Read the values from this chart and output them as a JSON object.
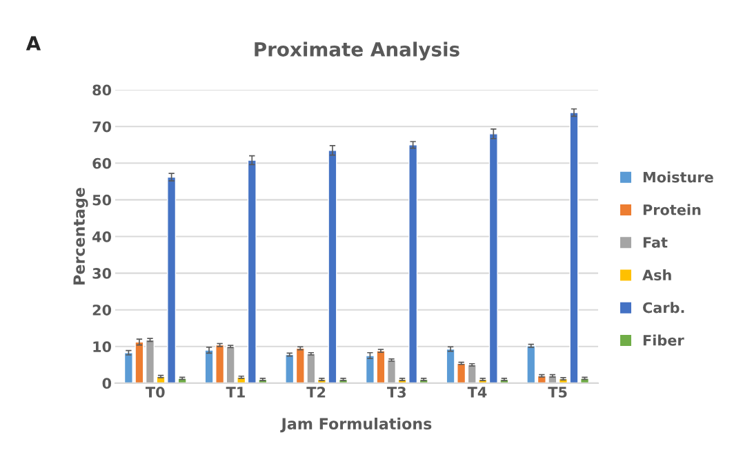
{
  "chart_data": {
    "type": "bar",
    "title": "Proximate Analysis",
    "xlabel": "Jam Formulations",
    "ylabel": "Percentage",
    "annotations": [
      "A"
    ],
    "categories": [
      "T0",
      "T1",
      "T2",
      "T3",
      "T4",
      "T5"
    ],
    "series": [
      {
        "name": "Moisture",
        "color": "#5b9bd5",
        "values": [
          8.3,
          9,
          7.8,
          7.5,
          9.3,
          10.2
        ],
        "errors": [
          0.6,
          0.8,
          0.4,
          0.8,
          0.6,
          0.4
        ]
      },
      {
        "name": "Protein",
        "color": "#ed7d31",
        "values": [
          11.2,
          10.4,
          9.5,
          8.8,
          5.4,
          2
        ],
        "errors": [
          0.8,
          0.4,
          0.4,
          0.4,
          0.3,
          0.3
        ]
      },
      {
        "name": "Fat",
        "color": "#a5a5a5",
        "values": [
          11.8,
          10,
          8,
          6.3,
          5,
          2
        ],
        "errors": [
          0.4,
          0.3,
          0.3,
          0.3,
          0.3,
          0.3
        ]
      },
      {
        "name": "Ash",
        "color": "#ffc000",
        "values": [
          1.8,
          1.6,
          1,
          1,
          1,
          1.2
        ],
        "errors": [
          0.3,
          0.3,
          0.3,
          0.3,
          0.3,
          0.3
        ]
      },
      {
        "name": "Carb.",
        "color": "#4472c4",
        "values": [
          56.2,
          60.8,
          63.5,
          65,
          68,
          73.8
        ],
        "errors": [
          1,
          1.2,
          1.3,
          0.9,
          1.3,
          1
        ]
      },
      {
        "name": "Fiber",
        "color": "#70ad47",
        "values": [
          1.3,
          1,
          1,
          1,
          1,
          1.3
        ],
        "errors": [
          0.3,
          0.3,
          0.3,
          0.3,
          0.3,
          0.3
        ]
      }
    ],
    "ylim": [
      0,
      80
    ],
    "yticks": [
      0,
      10,
      20,
      30,
      40,
      50,
      60,
      70,
      80
    ],
    "grid": "y",
    "legend": "right"
  }
}
